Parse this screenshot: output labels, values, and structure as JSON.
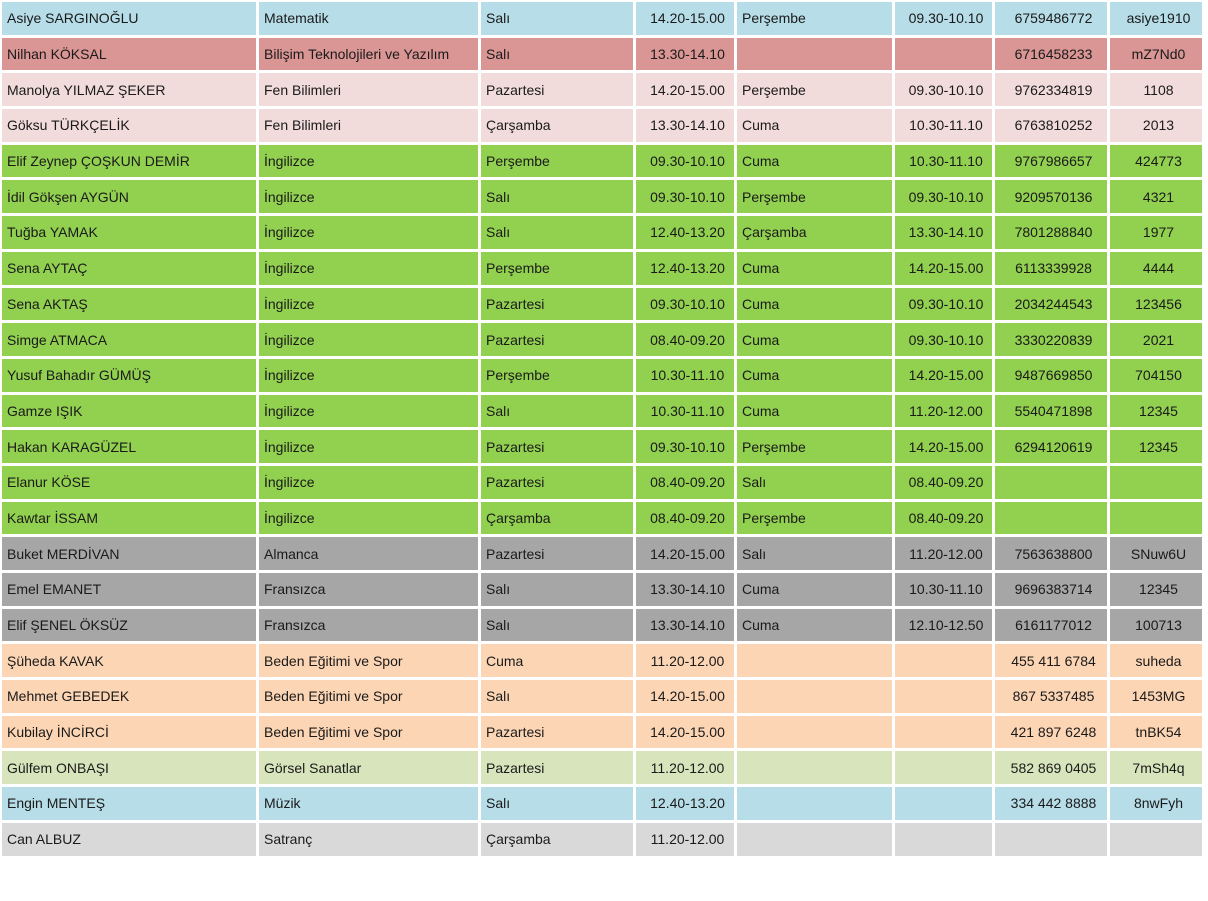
{
  "colors": {
    "blue": "#b7dde8",
    "red": "#da9694",
    "pink": "#f2dcdb",
    "green": "#92d050",
    "gray": "#a6a6a6",
    "peach": "#fcd5b4",
    "sage": "#d8e4bc",
    "lightgray": "#d9d9d9"
  },
  "rows": [
    {
      "color": "blue",
      "name": "Asiye SARGINOĞLU",
      "subject": "Matematik",
      "day1": "Salı",
      "time1": "14.20-15.00",
      "day2": "Perşembe",
      "time2": "09.30-10.10",
      "code": "6759486772",
      "pass": "asiye1910"
    },
    {
      "color": "red",
      "name": "Nilhan KÖKSAL",
      "subject": "Bilişim Teknolojileri ve Yazılım",
      "day1": "Salı",
      "time1": "13.30-14.10",
      "day2": "",
      "time2": "",
      "code": "6716458233",
      "pass": "mZ7Nd0"
    },
    {
      "color": "pink",
      "name": "Manolya YILMAZ ŞEKER",
      "subject": "Fen Bilimleri",
      "day1": "Pazartesi",
      "time1": "14.20-15.00",
      "day2": "Perşembe",
      "time2": "09.30-10.10",
      "code": "9762334819",
      "pass": "1108"
    },
    {
      "color": "pink",
      "name": "Göksu TÜRKÇELİK",
      "subject": "Fen Bilimleri",
      "day1": "Çarşamba",
      "time1": "13.30-14.10",
      "day2": "Cuma",
      "time2": "10.30-11.10",
      "code": "6763810252",
      "pass": "2013"
    },
    {
      "color": "green",
      "name": "Elif Zeynep ÇOŞKUN DEMİR",
      "subject": "İngilizce",
      "day1": "Perşembe",
      "time1": "09.30-10.10",
      "day2": "Cuma",
      "time2": "10.30-11.10",
      "code": "9767986657",
      "pass": "424773"
    },
    {
      "color": "green",
      "name": "İdil Gökşen AYGÜN",
      "subject": "İngilizce",
      "day1": "Salı",
      "time1": "09.30-10.10",
      "day2": "Perşembe",
      "time2": "09.30-10.10",
      "code": "9209570136",
      "pass": "4321"
    },
    {
      "color": "green",
      "name": "Tuğba YAMAK",
      "subject": "İngilizce",
      "day1": "Salı",
      "time1": "12.40-13.20",
      "day2": "Çarşamba",
      "time2": "13.30-14.10",
      "code": "7801288840",
      "pass": "1977"
    },
    {
      "color": "green",
      "name": "Sena AYTAÇ",
      "subject": "İngilizce",
      "day1": "Perşembe",
      "time1": "12.40-13.20",
      "day2": "Cuma",
      "time2": "14.20-15.00",
      "code": "6113339928",
      "pass": "4444"
    },
    {
      "color": "green",
      "name": "Sena AKTAŞ",
      "subject": "İngilizce",
      "day1": "Pazartesi",
      "time1": "09.30-10.10",
      "day2": "Cuma",
      "time2": "09.30-10.10",
      "code": "2034244543",
      "pass": "123456"
    },
    {
      "color": "green",
      "name": "Simge ATMACA",
      "subject": "İngilizce",
      "day1": "Pazartesi",
      "time1": "08.40-09.20",
      "day2": "Cuma",
      "time2": "09.30-10.10",
      "code": "3330220839",
      "pass": "2021"
    },
    {
      "color": "green",
      "name": "Yusuf Bahadır GÜMÜŞ",
      "subject": "İngilizce",
      "day1": "Perşembe",
      "time1": "10.30-11.10",
      "day2": "Cuma",
      "time2": "14.20-15.00",
      "code": "9487669850",
      "pass": "704150"
    },
    {
      "color": "green",
      "name": "Gamze IŞIK",
      "subject": "İngilizce",
      "day1": "Salı",
      "time1": "10.30-11.10",
      "day2": "Cuma",
      "time2": "11.20-12.00",
      "code": "5540471898",
      "pass": "12345"
    },
    {
      "color": "green",
      "name": "Hakan KARAGÜZEL",
      "subject": "İngilizce",
      "day1": "Pazartesi",
      "time1": "09.30-10.10",
      "day2": "Perşembe",
      "time2": "14.20-15.00",
      "code": "6294120619",
      "pass": "12345"
    },
    {
      "color": "green",
      "name": "Elanur KÖSE",
      "subject": "İngilizce",
      "day1": "Pazartesi",
      "time1": "08.40-09.20",
      "day2": "Salı",
      "time2": "08.40-09.20",
      "code": "",
      "pass": ""
    },
    {
      "color": "green",
      "name": "Kawtar İSSAM",
      "subject": "İngilizce",
      "day1": "Çarşamba",
      "time1": "08.40-09.20",
      "day2": "Perşembe",
      "time2": "08.40-09.20",
      "code": "",
      "pass": ""
    },
    {
      "color": "gray",
      "name": "Buket MERDİVAN",
      "subject": "Almanca",
      "day1": "Pazartesi",
      "time1": "14.20-15.00",
      "day2": "Salı",
      "time2": "11.20-12.00",
      "code": "7563638800",
      "pass": "SNuw6U"
    },
    {
      "color": "gray",
      "name": "Emel EMANET",
      "subject": "Fransızca",
      "day1": "Salı",
      "time1": "13.30-14.10",
      "day2": "Cuma",
      "time2": "10.30-11.10",
      "code": "9696383714",
      "pass": "12345"
    },
    {
      "color": "gray",
      "name": "Elif ŞENEL ÖKSÜZ",
      "subject": "Fransızca",
      "day1": "Salı",
      "time1": "13.30-14.10",
      "day2": "Cuma",
      "time2": "12.10-12.50",
      "code": "6161177012",
      "pass": "100713"
    },
    {
      "color": "peach",
      "name": "Şüheda KAVAK",
      "subject": "Beden Eğitimi ve Spor",
      "day1": "Cuma",
      "time1": "11.20-12.00",
      "day2": "",
      "time2": "",
      "code": "455 411 6784",
      "pass": "suheda"
    },
    {
      "color": "peach",
      "name": "Mehmet GEBEDEK",
      "subject": "Beden Eğitimi ve Spor",
      "day1": "Salı",
      "time1": "14.20-15.00",
      "day2": "",
      "time2": "",
      "code": "867 5337485",
      "pass": "1453MG"
    },
    {
      "color": "peach",
      "name": "Kubilay İNCİRCİ",
      "subject": "Beden Eğitimi ve Spor",
      "day1": "Pazartesi",
      "time1": "14.20-15.00",
      "day2": "",
      "time2": "",
      "code": "421 897 6248",
      "pass": "tnBK54"
    },
    {
      "color": "sage",
      "name": "Gülfem ONBAŞI",
      "subject": "Görsel Sanatlar",
      "day1": "Pazartesi",
      "time1": "11.20-12.00",
      "day2": "",
      "time2": "",
      "code": "582 869 0405",
      "pass": "7mSh4q"
    },
    {
      "color": "blue",
      "name": "Engin MENTEŞ",
      "subject": "Müzik",
      "day1": "Salı",
      "time1": "12.40-13.20",
      "day2": "",
      "time2": "",
      "code": "334 442 8888",
      "pass": "8nwFyh"
    },
    {
      "color": "lightgray",
      "name": "Can ALBUZ",
      "subject": "Satranç",
      "day1": "Çarşamba",
      "time1": "11.20-12.00",
      "day2": "",
      "time2": "",
      "code": "",
      "pass": ""
    }
  ]
}
